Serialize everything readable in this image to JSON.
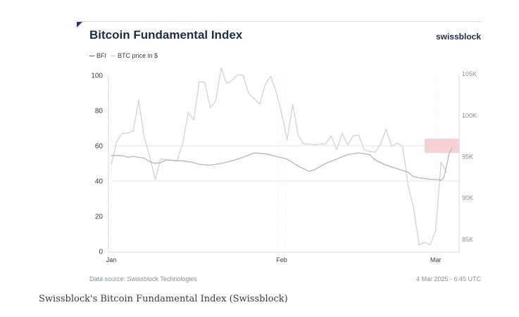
{
  "header": {
    "title": "Bitcoin Fundamental Index",
    "brand": "swissblock"
  },
  "footer": {
    "source": "Data source: Swissblock Technologies",
    "timestamp": "4 Mar 2025 - 6:45 UTC"
  },
  "caption": "Swissblock's Bitcoin Fundamental Index (Swissblock)",
  "colors": {
    "bfi": "#b8b8b8",
    "btc": "#d8d8d8",
    "highlight": "#f4c2c6",
    "text": "#1f2a44",
    "accent": "#2b2d8c"
  },
  "chart_data": {
    "type": "line",
    "legend": [
      {
        "name": "BFI"
      },
      {
        "name": "BTC price in $"
      }
    ],
    "legend_position": "top-left",
    "y_left": {
      "range": [
        0,
        100
      ],
      "ticks": [
        0,
        20,
        40,
        60,
        80,
        100
      ],
      "tick_labels": [
        "0",
        "20",
        "40",
        "60",
        "80",
        "100"
      ]
    },
    "y_right": {
      "range": [
        83500,
        104800
      ],
      "ticks": [
        85000,
        90000,
        95000,
        100000,
        105000
      ],
      "tick_labels": [
        "85K",
        "90K",
        "95K",
        "100K",
        "105K"
      ]
    },
    "x": {
      "range": [
        "2025-01-01",
        "2025-03-04"
      ],
      "tick_labels": [
        "Jan",
        "Feb",
        "Mar"
      ],
      "tick_dates": [
        "2025-01-01",
        "2025-02-01",
        "2025-03-01"
      ]
    },
    "reference_lines_left": [
      40,
      60
    ],
    "highlight": {
      "x_range": [
        "2025-02-27",
        "2025-03-04"
      ],
      "y_range": [
        56,
        64
      ]
    },
    "series": [
      {
        "name": "BFI",
        "axis": "left",
        "points": [
          [
            "2025-01-01",
            54.5
          ],
          [
            "2025-01-03",
            54.5
          ],
          [
            "2025-01-04",
            53.5
          ],
          [
            "2025-01-05",
            54.0
          ],
          [
            "2025-01-07",
            53.0
          ],
          [
            "2025-01-08",
            51.0
          ],
          [
            "2025-01-09",
            50.0
          ],
          [
            "2025-01-10",
            50.5
          ],
          [
            "2025-01-11",
            52.0
          ],
          [
            "2025-01-13",
            51.5
          ],
          [
            "2025-01-14",
            51.5
          ],
          [
            "2025-01-16",
            50.5
          ],
          [
            "2025-01-17",
            49.5
          ],
          [
            "2025-01-19",
            49.0
          ],
          [
            "2025-01-21",
            50.0
          ],
          [
            "2025-01-23",
            51.5
          ],
          [
            "2025-01-25",
            53.5
          ],
          [
            "2025-01-27",
            56.0
          ],
          [
            "2025-01-29",
            55.5
          ],
          [
            "2025-01-31",
            54.0
          ],
          [
            "2025-02-02",
            52.5
          ],
          [
            "2025-02-04",
            48.5
          ],
          [
            "2025-02-06",
            45.5
          ],
          [
            "2025-02-07",
            46.5
          ],
          [
            "2025-02-09",
            50.0
          ],
          [
            "2025-02-11",
            52.5
          ],
          [
            "2025-02-13",
            55.0
          ],
          [
            "2025-02-15",
            56.0
          ],
          [
            "2025-02-17",
            55.0
          ],
          [
            "2025-02-18",
            52.0
          ],
          [
            "2025-02-20",
            49.0
          ],
          [
            "2025-02-22",
            47.0
          ],
          [
            "2025-02-24",
            45.0
          ],
          [
            "2025-02-25",
            42.5
          ],
          [
            "2025-02-26",
            41.8
          ],
          [
            "2025-02-27",
            41.5
          ],
          [
            "2025-02-28",
            41.0
          ],
          [
            "2025-03-01",
            41.0
          ],
          [
            "2025-03-02",
            40.5
          ],
          [
            "2025-03-02T12:00",
            42.0
          ],
          [
            "2025-03-03",
            49.0
          ],
          [
            "2025-03-03T12:00",
            56.0
          ],
          [
            "2025-03-04",
            59.0
          ]
        ]
      },
      {
        "name": "BTC price in $",
        "axis": "right",
        "points": [
          [
            "2025-01-01",
            94000
          ],
          [
            "2025-01-02",
            96800
          ],
          [
            "2025-01-03",
            97800
          ],
          [
            "2025-01-04",
            97800
          ],
          [
            "2025-01-05",
            98100
          ],
          [
            "2025-01-06",
            101800
          ],
          [
            "2025-01-07",
            97300
          ],
          [
            "2025-01-08",
            95000
          ],
          [
            "2025-01-09",
            92200
          ],
          [
            "2025-01-10",
            94700
          ],
          [
            "2025-01-11",
            94600
          ],
          [
            "2025-01-13",
            94500
          ],
          [
            "2025-01-14",
            96600
          ],
          [
            "2025-01-15",
            100300
          ],
          [
            "2025-01-16",
            99400
          ],
          [
            "2025-01-17",
            104000
          ],
          [
            "2025-01-18",
            104000
          ],
          [
            "2025-01-19",
            100900
          ],
          [
            "2025-01-20",
            101700
          ],
          [
            "2025-01-21",
            105700
          ],
          [
            "2025-01-22",
            103800
          ],
          [
            "2025-01-23",
            104200
          ],
          [
            "2025-01-24",
            104900
          ],
          [
            "2025-01-25",
            104800
          ],
          [
            "2025-01-26",
            102600
          ],
          [
            "2025-01-27",
            102000
          ],
          [
            "2025-01-28",
            101300
          ],
          [
            "2025-01-29",
            103700
          ],
          [
            "2025-01-30",
            104700
          ],
          [
            "2025-01-31",
            102800
          ],
          [
            "2025-02-01",
            100200
          ],
          [
            "2025-02-02",
            97000
          ],
          [
            "2025-02-03",
            101300
          ],
          [
            "2025-02-04",
            97600
          ],
          [
            "2025-02-05",
            96500
          ],
          [
            "2025-02-06",
            96500
          ],
          [
            "2025-02-07",
            96400
          ],
          [
            "2025-02-08",
            96500
          ],
          [
            "2025-02-09",
            96500
          ],
          [
            "2025-02-10",
            97500
          ],
          [
            "2025-02-11",
            95800
          ],
          [
            "2025-02-12",
            97800
          ],
          [
            "2025-02-13",
            96400
          ],
          [
            "2025-02-14",
            97500
          ],
          [
            "2025-02-15",
            97600
          ],
          [
            "2025-02-16",
            95800
          ],
          [
            "2025-02-17",
            95600
          ],
          [
            "2025-02-18",
            95500
          ],
          [
            "2025-02-19",
            96500
          ],
          [
            "2025-02-20",
            98300
          ],
          [
            "2025-02-21",
            96200
          ],
          [
            "2025-02-22",
            96600
          ],
          [
            "2025-02-23",
            96200
          ],
          [
            "2025-02-24",
            91500
          ],
          [
            "2025-02-25",
            88700
          ],
          [
            "2025-02-26",
            84300
          ],
          [
            "2025-02-27",
            84600
          ],
          [
            "2025-02-28",
            84300
          ],
          [
            "2025-03-01",
            86000
          ],
          [
            "2025-03-02",
            94300
          ],
          [
            "2025-03-03",
            93000
          ]
        ]
      }
    ]
  }
}
